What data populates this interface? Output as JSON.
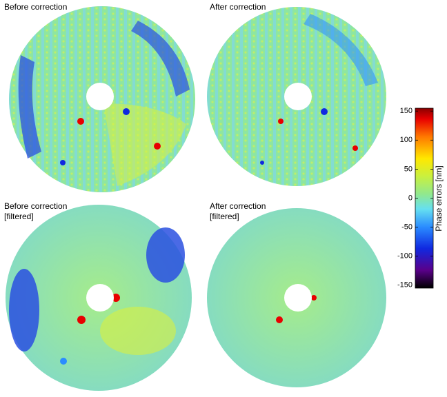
{
  "chart_data": {
    "type": "image-grid",
    "panels": [
      {
        "title": "Before correction"
      },
      {
        "title": "After correction"
      },
      {
        "title": "Before correction",
        "subtitle": "[filtered]"
      },
      {
        "title": "After correction",
        "subtitle": "[filtered]"
      }
    ],
    "colorbar": {
      "label": "Phase errors [nm]",
      "lim": [
        -155,
        155
      ],
      "ticks": [
        150,
        100,
        50,
        0,
        -50,
        -100,
        -150
      ]
    }
  }
}
